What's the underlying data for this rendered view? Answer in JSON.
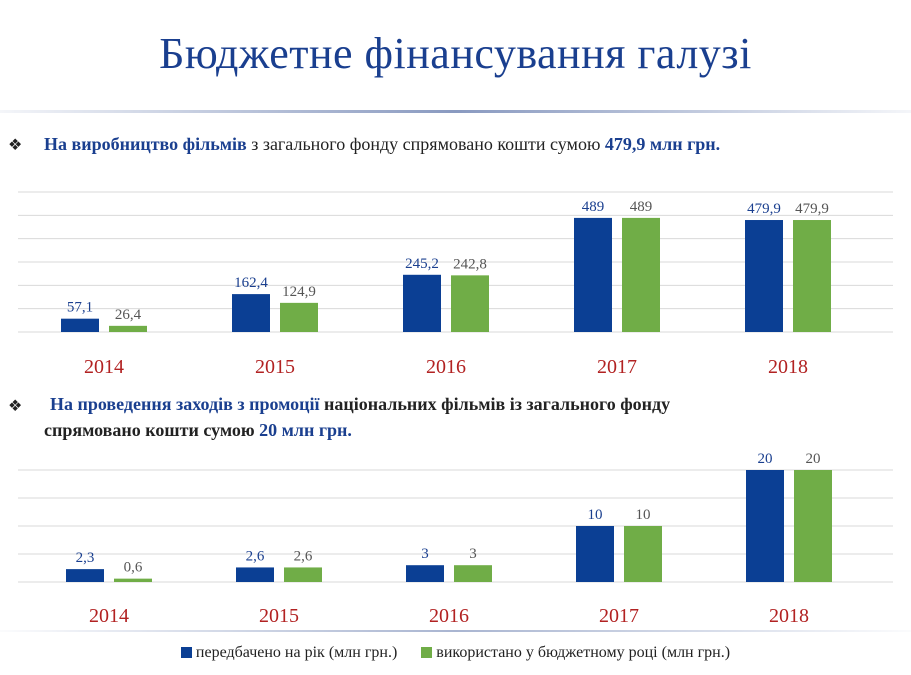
{
  "title": "Бюджетне фінансування галузі",
  "section1": {
    "bullet": "❖",
    "hl1": "На виробництво фільмів",
    "text1": " з загального фонду спрямовано кошти сумою ",
    "hl2": "479,9 млн грн."
  },
  "section2": {
    "bullet": "❖",
    "hl1": "На проведення заходів з промоції",
    "text1": " національних фільмів із загального фонду",
    "text2": "спрямовано кошти сумою ",
    "hl2": "20 млн грн."
  },
  "colors": {
    "planned": "#0b3f94",
    "used": "#70ad47",
    "year_label": "#b22222",
    "value_planned": "#1a3f8f",
    "value_used": "#555555",
    "grid": "#d9d9d9"
  },
  "legend": {
    "planned": "передбачено на рік (млн грн.)",
    "used": "використано у бюджетному році (млн грн.)"
  },
  "chart_data": [
    {
      "type": "bar",
      "categories": [
        "2014",
        "2015",
        "2016",
        "2017",
        "2018"
      ],
      "series": [
        {
          "name": "передбачено на рік (млн грн.)",
          "values": [
            57.1,
            162.4,
            245.2,
            489,
            479.9
          ],
          "labels": [
            "57,1",
            "162,4",
            "245,2",
            "489",
            "479,9"
          ]
        },
        {
          "name": "використано у бюджетному році (млн грн.)",
          "values": [
            26.4,
            124.9,
            242.8,
            489,
            479.9
          ],
          "labels": [
            "26,4",
            "124,9",
            "242,8",
            "489",
            "479,9"
          ]
        }
      ],
      "ylim": [
        0,
        600
      ],
      "grid": true
    },
    {
      "type": "bar",
      "categories": [
        "2014",
        "2015",
        "2016",
        "2017",
        "2018"
      ],
      "series": [
        {
          "name": "передбачено на рік (млн грн.)",
          "values": [
            2.3,
            2.6,
            3,
            10,
            20
          ],
          "labels": [
            "2,3",
            "2,6",
            "3",
            "10",
            "20"
          ]
        },
        {
          "name": "використано у бюджетному році (млн грн.)",
          "values": [
            0.6,
            2.6,
            3,
            10,
            20
          ],
          "labels": [
            "0,6",
            "2,6",
            "3",
            "10",
            "20"
          ]
        }
      ],
      "ylim": [
        0,
        20
      ],
      "grid": true
    }
  ]
}
